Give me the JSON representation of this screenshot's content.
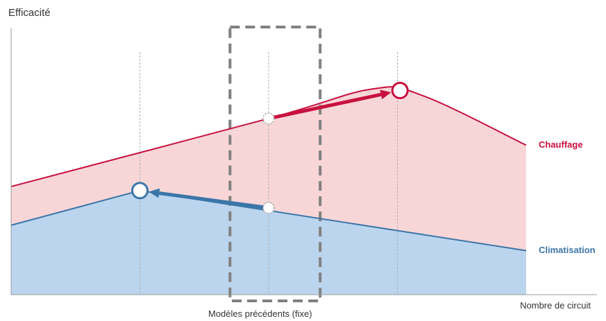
{
  "chart_data": {
    "type": "area",
    "ylabel": "Efficacité",
    "xlabel": "Nombre de circuit",
    "band_label": "Modèles précédents (fixe)",
    "xlim": [
      0,
      10
    ],
    "ylim": [
      0,
      10
    ],
    "series": [
      {
        "name": "Chauffage",
        "color": "#c8103e",
        "fill": "#f8d6d8",
        "x": [
          0,
          5,
          7,
          8,
          10
        ],
        "y": [
          4.05,
          6.6,
          7.7,
          7.45,
          5.6
        ]
      },
      {
        "name": "Climatisation",
        "color": "#3b76a8",
        "fill": "#bcd5ee",
        "x": [
          0,
          2.5,
          10
        ],
        "y": [
          2.6,
          3.9,
          1.65
        ]
      }
    ],
    "guide_x": [
      2.5,
      5,
      7.5
    ],
    "band_x": [
      4.25,
      6
    ],
    "shift_arrows": [
      {
        "series": "Chauffage",
        "from": [
          5,
          6.6
        ],
        "to": [
          7.55,
          7.65
        ]
      },
      {
        "series": "Climatisation",
        "from": [
          5,
          3.25
        ],
        "to": [
          2.5,
          3.9
        ]
      }
    ]
  }
}
